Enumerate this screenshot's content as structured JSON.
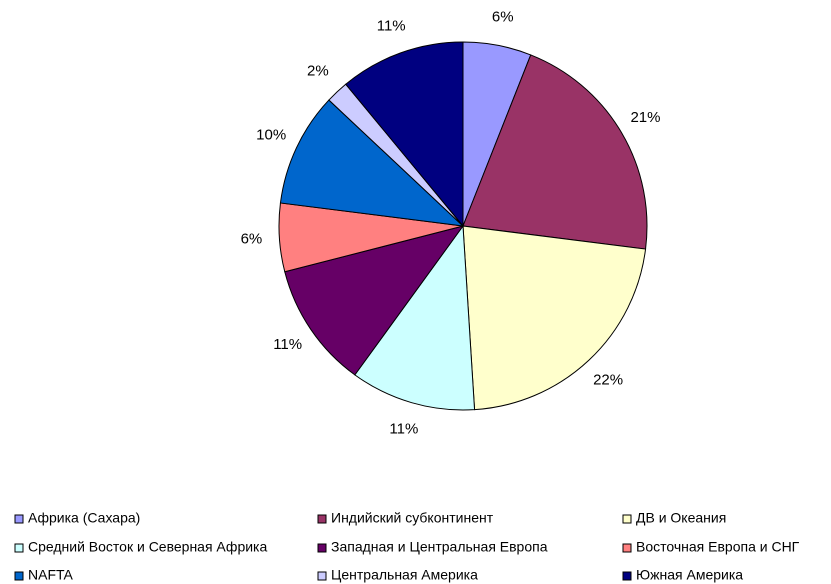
{
  "chart_data": {
    "type": "pie",
    "categories": [
      "Африка (Сахара)",
      "Индийский субконтинент",
      "ДВ и Океания",
      "Средний Восток и Северная Африка",
      "Западная и Центральная Европа",
      "Восточная Европа и СНГ",
      "NAFTA",
      "Центральная Америка",
      "Южная Америка"
    ],
    "values": [
      6,
      21,
      22,
      11,
      11,
      6,
      10,
      2,
      11
    ],
    "value_labels": [
      "6%",
      "21%",
      "22%",
      "11%",
      "11%",
      "6%",
      "10%",
      "2%",
      "11%"
    ],
    "colors": [
      "#9999FF",
      "#993366",
      "#FFFFCC",
      "#CCFFFF",
      "#660066",
      "#FF8080",
      "#0066CC",
      "#CCCCFF",
      "#000080"
    ],
    "legend": "bottom"
  }
}
